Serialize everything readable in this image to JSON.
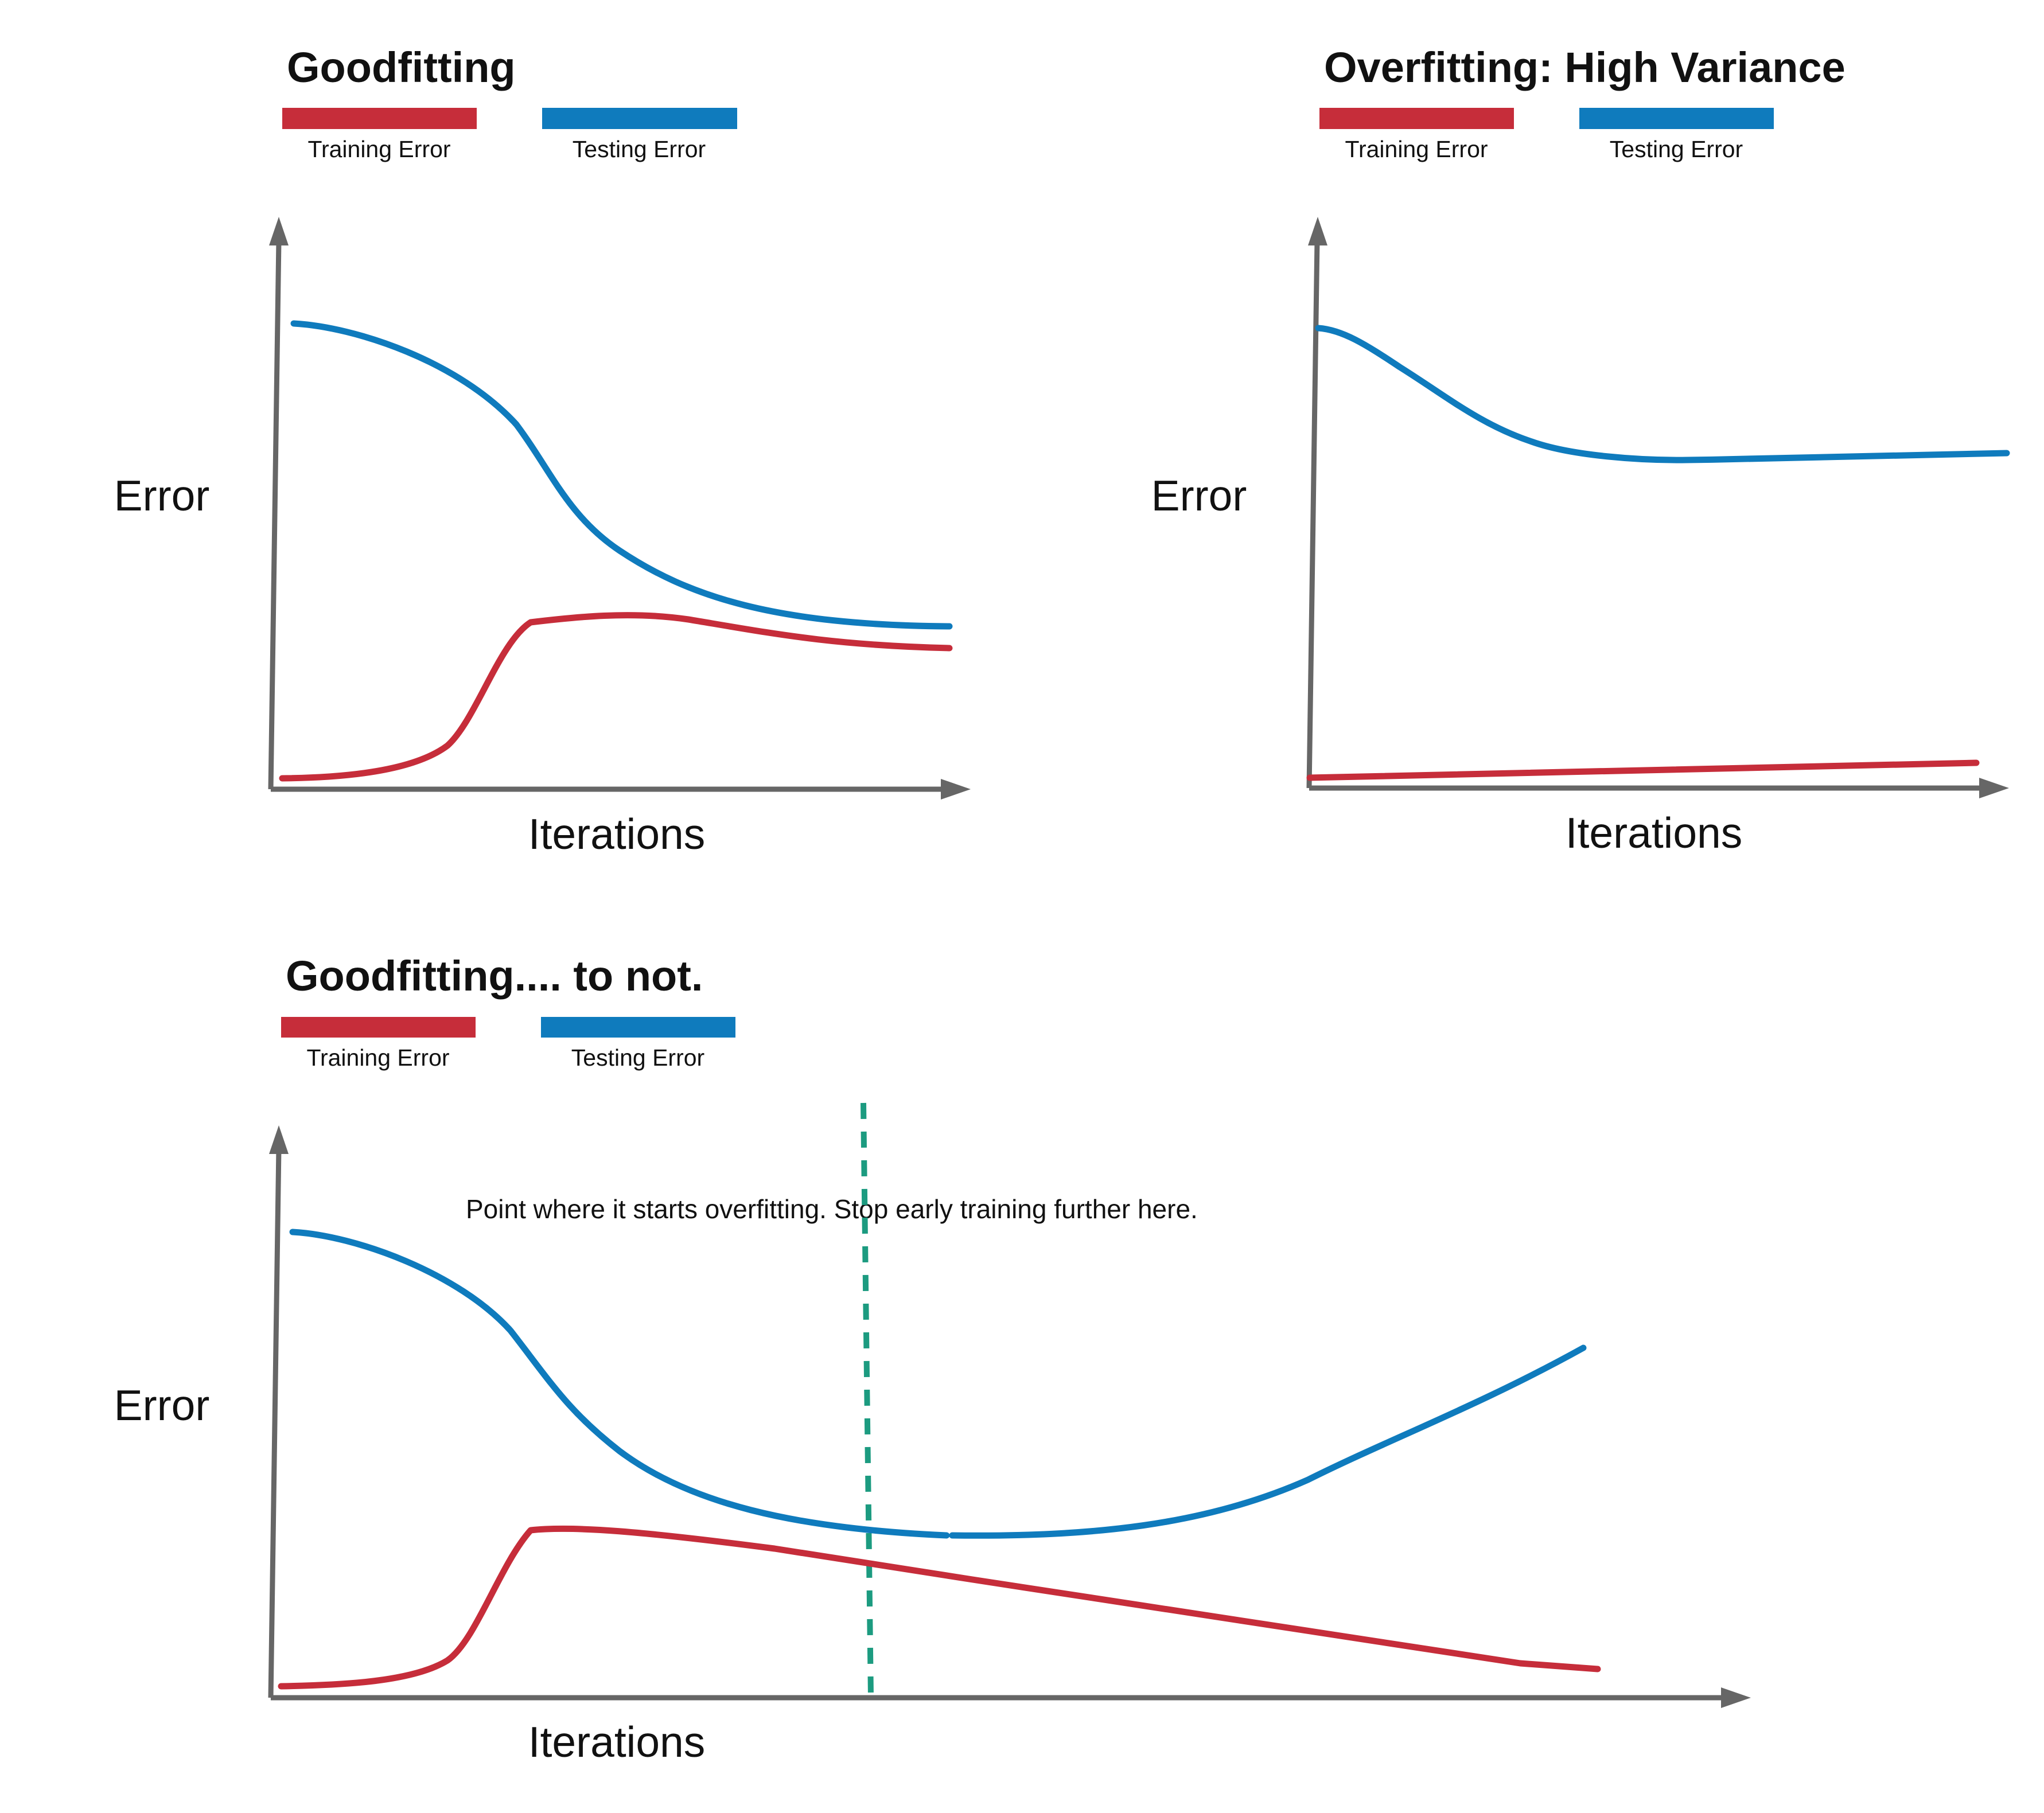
{
  "colors": {
    "training": "#c62d3a",
    "testing": "#0f7bbd",
    "axis": "#666666",
    "divider": "#1c9b80"
  },
  "legend": {
    "training_label": "Training Error",
    "testing_label": "Testing Error"
  },
  "axes": {
    "x_label": "Iterations",
    "y_label": "Error"
  },
  "panels": {
    "goodfitting": {
      "title": "Goodfitting"
    },
    "overfitting": {
      "title": "Overfitting: High Variance"
    },
    "goodfitting_to_not": {
      "title": "Goodfitting.... to not.",
      "annotation": "Point where it starts overfitting. Stop early training further here."
    }
  },
  "chart_data": [
    {
      "type": "line",
      "title": "Goodfitting",
      "xlabel": "Iterations",
      "ylabel": "Error",
      "x": [
        0,
        0.07,
        0.14,
        0.2,
        0.26,
        0.33,
        0.4,
        0.5,
        0.6,
        0.7,
        0.8,
        0.9,
        1.0
      ],
      "series": [
        {
          "name": "Training Error",
          "values": [
            0.02,
            0.03,
            0.06,
            0.12,
            0.37,
            0.38,
            0.39,
            0.39,
            0.38,
            0.36,
            0.34,
            0.33,
            0.33
          ]
        },
        {
          "name": "Testing Error",
          "values": [
            0.82,
            0.8,
            0.76,
            0.7,
            0.6,
            0.48,
            0.42,
            0.5,
            0.45,
            0.42,
            0.39,
            0.38,
            0.37
          ]
        }
      ]
    },
    {
      "type": "line",
      "title": "Overfitting: High Variance",
      "xlabel": "Iterations",
      "ylabel": "Error",
      "x": [
        0,
        0.1,
        0.2,
        0.3,
        0.4,
        0.5,
        0.6,
        0.7,
        0.8,
        0.9,
        1.0
      ],
      "series": [
        {
          "name": "Training Error",
          "values": [
            0.02,
            0.025,
            0.03,
            0.035,
            0.04,
            0.045,
            0.05,
            0.055,
            0.06,
            0.065,
            0.07
          ]
        },
        {
          "name": "Testing Error",
          "values": [
            0.82,
            0.74,
            0.64,
            0.6,
            0.58,
            0.58,
            0.58,
            0.58,
            0.585,
            0.59,
            0.59
          ]
        }
      ]
    },
    {
      "type": "line",
      "title": "Goodfitting.... to not.",
      "xlabel": "Iterations",
      "ylabel": "Error",
      "x": [
        0,
        0.05,
        0.1,
        0.15,
        0.2,
        0.3,
        0.4,
        0.45,
        0.5,
        0.6,
        0.7,
        0.8,
        0.9,
        1.0
      ],
      "series": [
        {
          "name": "Training Error",
          "values": [
            0.02,
            0.03,
            0.07,
            0.37,
            0.37,
            0.36,
            0.33,
            0.3,
            0.28,
            0.24,
            0.2,
            0.16,
            0.12,
            0.08
          ]
        },
        {
          "name": "Testing Error",
          "values": [
            0.82,
            0.79,
            0.7,
            0.58,
            0.48,
            0.4,
            0.35,
            0.33,
            0.32,
            0.33,
            0.38,
            0.46,
            0.56,
            0.66
          ]
        }
      ],
      "annotations": [
        "Point where it starts overfitting. Stop early training further here."
      ]
    }
  ]
}
